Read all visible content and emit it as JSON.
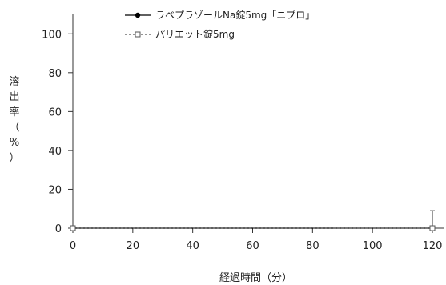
{
  "chart_data": {
    "type": "line",
    "xlabel": "経過時間（分）",
    "ylabel": "溶出率（%）",
    "ylabel_chars": [
      "溶",
      "出",
      "率",
      "（",
      "%",
      "）"
    ],
    "xlim": [
      0,
      120
    ],
    "ylim": [
      0,
      110
    ],
    "x_ticks": [
      "0",
      "20",
      "40",
      "60",
      "80",
      "100",
      "120"
    ],
    "y_ticks": [
      "0",
      "20",
      "40",
      "60",
      "80",
      "100"
    ],
    "grid": false,
    "legend_position": "top-left",
    "series": [
      {
        "name": "ラベプラゾールNa錠5mg「ニプロ」",
        "marker": "filled-circle",
        "line_style": "solid",
        "color": "#000000",
        "x": [
          0,
          120
        ],
        "y": [
          0,
          0
        ],
        "error": [
          0,
          0
        ]
      },
      {
        "name": "パリエット錠5mg",
        "marker": "open-square",
        "line_style": "dashed",
        "color": "#555555",
        "x": [
          0,
          120
        ],
        "y": [
          0,
          0
        ],
        "error": [
          0,
          9
        ]
      }
    ]
  }
}
